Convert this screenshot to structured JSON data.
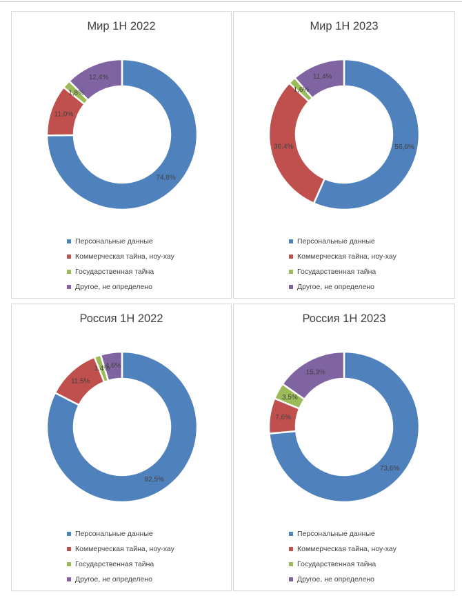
{
  "colors": {
    "personal": "#4f81bd",
    "commercial": "#c0504d",
    "state": "#9bbb59",
    "other": "#8064a2"
  },
  "chart_data": [
    {
      "type": "pie",
      "variant": "donut",
      "title": "Мир 1H 2022",
      "categories": [
        "Персональные данные",
        "Коммерческая тайна, ноу-хау",
        "Государственная тайна",
        "Другое, не определено"
      ],
      "values": [
        74.8,
        11.0,
        1.8,
        12.4
      ],
      "labels": [
        "74,8%",
        "11,0%",
        "1,8%",
        "12,4%"
      ],
      "legend": "bottom"
    },
    {
      "type": "pie",
      "variant": "donut",
      "title": "Мир 1H 2023",
      "categories": [
        "Персональные данные",
        "Коммерческая тайна, ноу-хау",
        "Государственная тайна",
        "Другое, не определено"
      ],
      "values": [
        56.6,
        30.4,
        1.6,
        11.4
      ],
      "labels": [
        "56,6%",
        "30,4%",
        "1,6%",
        "11,4%"
      ],
      "legend": "bottom"
    },
    {
      "type": "pie",
      "variant": "donut",
      "title": "Россия 1H 2022",
      "categories": [
        "Персональные данные",
        "Коммерческая тайна, ноу-хау",
        "Государственная тайна",
        "Другое, не определено"
      ],
      "values": [
        82.5,
        11.5,
        1.4,
        4.6
      ],
      "labels": [
        "82,5%",
        "11,5%",
        "1,4%",
        "4,6%"
      ],
      "legend": "bottom"
    },
    {
      "type": "pie",
      "variant": "donut",
      "title": "Россия 1H 2023",
      "categories": [
        "Персональные данные",
        "Коммерческая тайна, ноу-хау",
        "Государственная тайна",
        "Другое, не определено"
      ],
      "values": [
        73.6,
        7.6,
        3.5,
        15.3
      ],
      "labels": [
        "73,6%",
        "7,6%",
        "3,5%",
        "15,3%"
      ],
      "legend": "bottom"
    }
  ]
}
